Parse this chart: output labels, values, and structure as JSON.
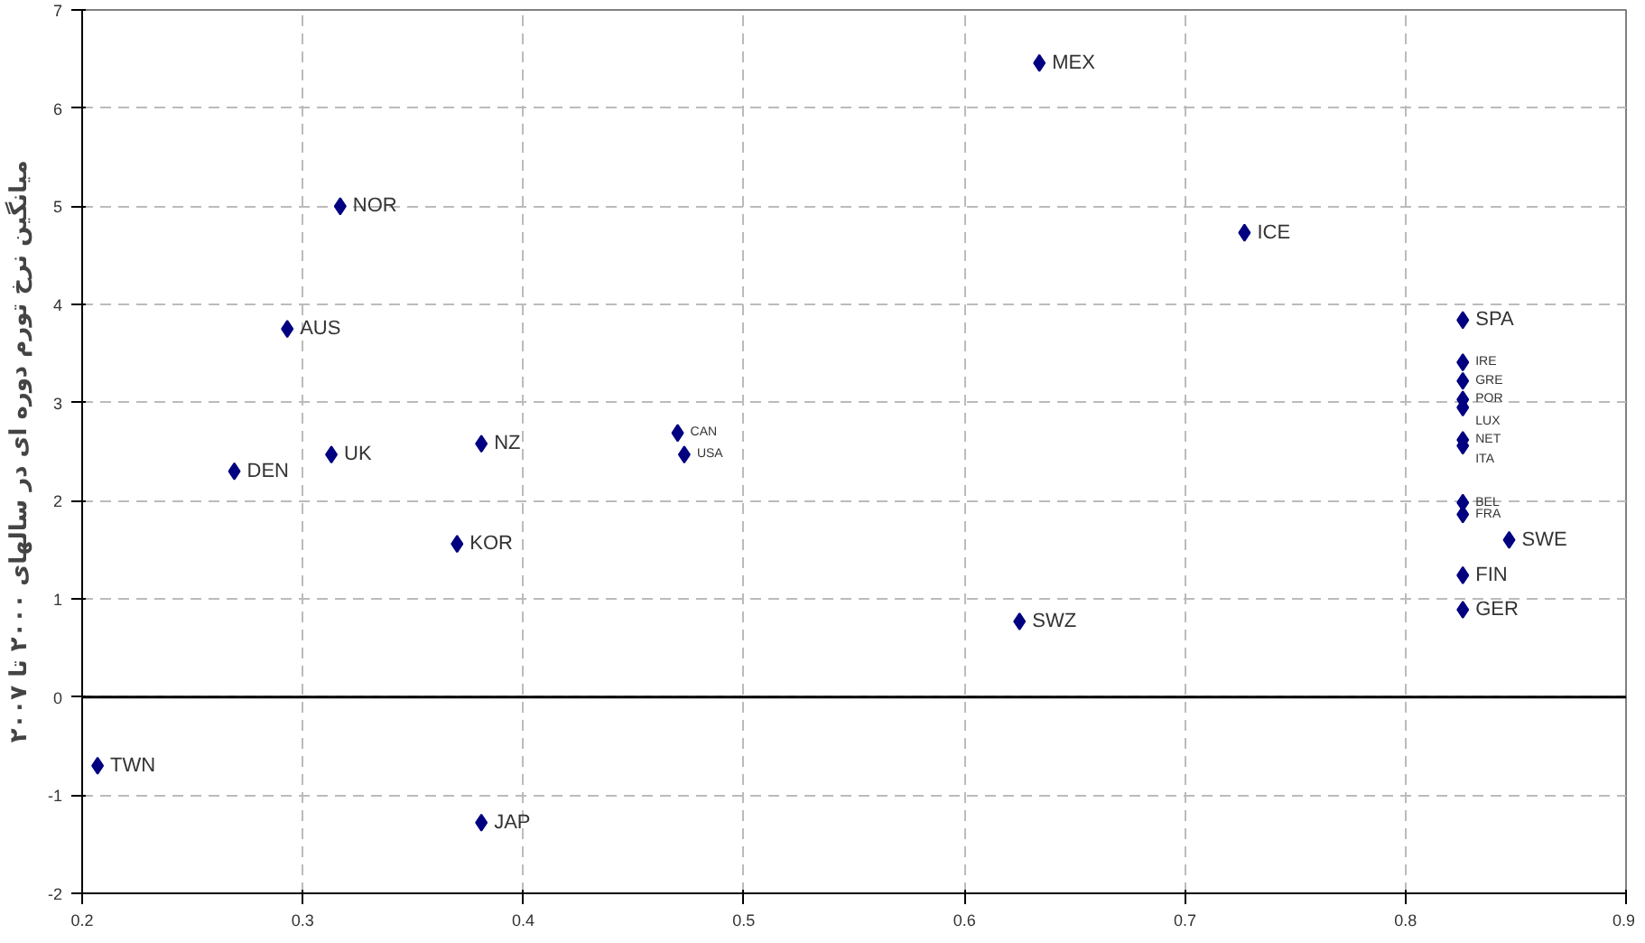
{
  "chart_data": {
    "type": "scatter",
    "ylabel": "میانگین نرخ تورم دوره ای در سالهای ۲۰۰۰ تا ۲۰۰۷",
    "x": [
      0.207,
      0.381,
      0.269,
      0.293,
      0.317,
      0.313,
      0.381,
      0.37,
      0.47,
      0.473,
      0.634,
      0.727,
      0.625,
      0.826,
      0.826,
      0.826,
      0.826,
      0.826,
      0.826,
      0.826,
      0.826,
      0.826,
      0.847,
      0.826,
      0.826
    ],
    "series": [
      {
        "color": "#000080",
        "values": [
          -0.7,
          -1.28,
          2.3,
          3.75,
          5.0,
          2.47,
          2.58,
          1.56,
          2.69,
          2.47,
          6.46,
          4.73,
          0.77,
          3.84,
          3.41,
          3.22,
          3.03,
          2.95,
          2.62,
          2.56,
          1.98,
          1.86,
          1.6,
          1.24,
          0.89
        ]
      }
    ],
    "annotations": [
      {
        "text": "TWN",
        "x": 0.207,
        "y": -0.7
      },
      {
        "text": "JAP",
        "x": 0.381,
        "y": -1.28
      },
      {
        "text": "DEN",
        "x": 0.269,
        "y": 2.3
      },
      {
        "text": "AUS",
        "x": 0.293,
        "y": 3.75
      },
      {
        "text": "NOR",
        "x": 0.317,
        "y": 5.0
      },
      {
        "text": "UK",
        "x": 0.313,
        "y": 2.47
      },
      {
        "text": "NZ",
        "x": 0.381,
        "y": 2.58
      },
      {
        "text": "KOR",
        "x": 0.37,
        "y": 1.56
      },
      {
        "text": "CAN",
        "x": 0.47,
        "y": 2.69
      },
      {
        "text": "USA",
        "x": 0.473,
        "y": 2.47
      },
      {
        "text": "MEX",
        "x": 0.634,
        "y": 6.46
      },
      {
        "text": "ICE",
        "x": 0.727,
        "y": 4.73
      },
      {
        "text": "SWZ",
        "x": 0.625,
        "y": 0.77
      },
      {
        "text": "SPA",
        "x": 0.826,
        "y": 3.84
      },
      {
        "text": "IRE",
        "x": 0.826,
        "y": 3.41
      },
      {
        "text": "GRE",
        "x": 0.826,
        "y": 3.22
      },
      {
        "text": "POR",
        "x": 0.826,
        "y": 3.03
      },
      {
        "text": "LUX",
        "x": 0.826,
        "y": 2.95
      },
      {
        "text": "NET",
        "x": 0.826,
        "y": 2.62
      },
      {
        "text": "ITA",
        "x": 0.826,
        "y": 2.56
      },
      {
        "text": "BEL",
        "x": 0.826,
        "y": 1.98
      },
      {
        "text": "FRA",
        "x": 0.826,
        "y": 1.86
      },
      {
        "text": "SWE",
        "x": 0.847,
        "y": 1.6
      },
      {
        "text": "FIN",
        "x": 0.826,
        "y": 1.24
      },
      {
        "text": "GER",
        "x": 0.826,
        "y": 0.89
      }
    ],
    "xlim": [
      0.2,
      0.9
    ],
    "ylim": [
      -2,
      7
    ],
    "xticks": [
      0.2,
      0.3,
      0.4,
      0.5,
      0.6,
      0.7,
      0.8,
      0.9
    ],
    "yticks": [
      -2,
      -1,
      0,
      1,
      2,
      3,
      4,
      5,
      6,
      7
    ],
    "ref_lines": [
      {
        "axis": "y",
        "value": 0,
        "color": "#000000"
      }
    ],
    "grid": true,
    "marker": "diamond"
  }
}
